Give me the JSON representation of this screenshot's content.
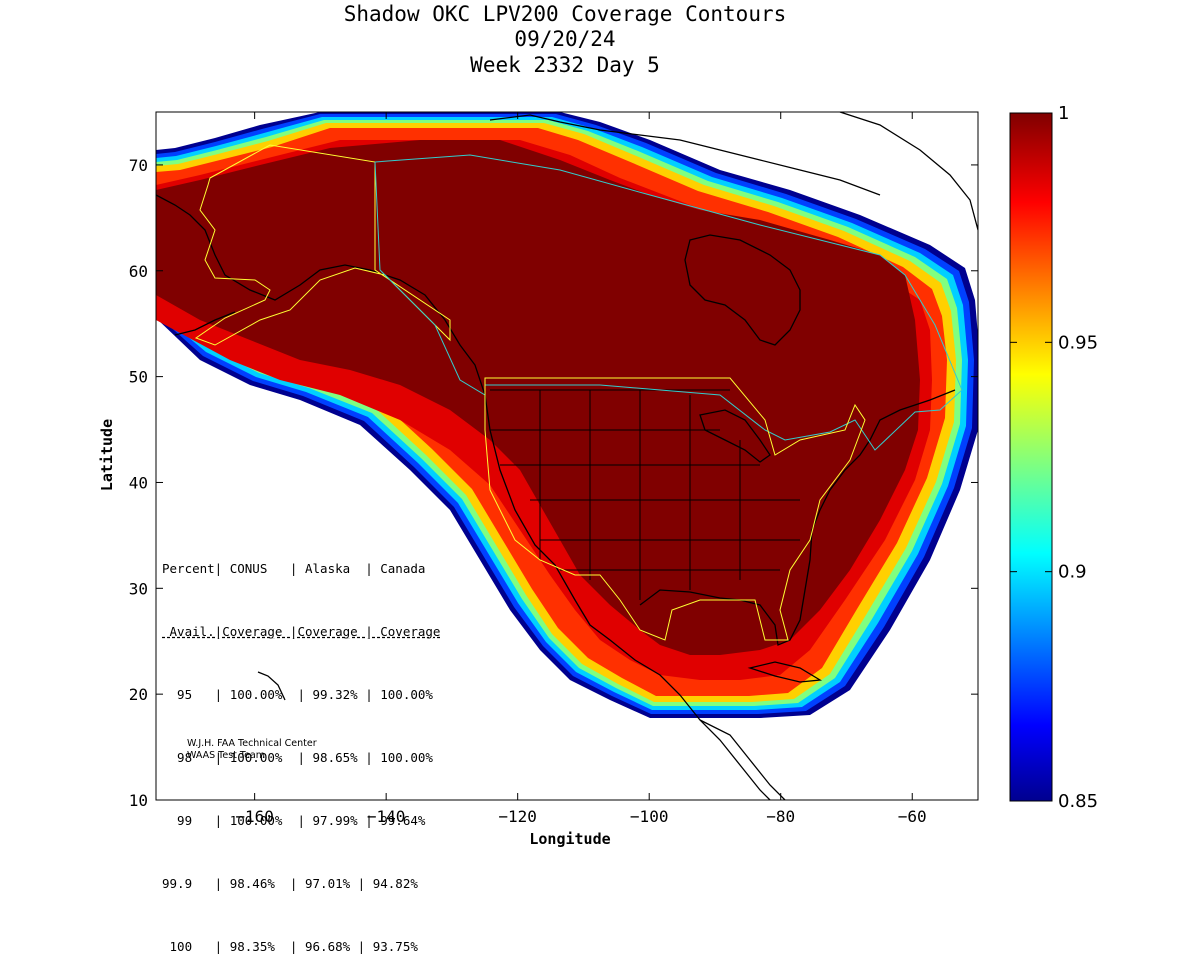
{
  "title": {
    "line1": "Shadow OKC LPV200 Coverage Contours",
    "line2": "09/20/24",
    "line3": "Week 2332 Day 5"
  },
  "axes": {
    "xlabel": "Longitude",
    "ylabel": "Latitude",
    "xticks": [
      -160,
      -140,
      -120,
      -100,
      -80,
      -60
    ],
    "yticks": [
      10,
      20,
      30,
      40,
      50,
      60,
      70
    ],
    "xlim": [
      -175,
      -50
    ],
    "ylim": [
      10,
      75
    ]
  },
  "colorbar": {
    "min": 0.85,
    "max": 1,
    "labels": [
      "1",
      "0.95",
      "0.9",
      "0.85"
    ],
    "colormap": "jet"
  },
  "stats_table": {
    "header1": "Percent| CONUS   | Alaska  | Canada",
    "header2": " Avail.|Coverage |Coverage | Coverage",
    "rows": [
      "  95   | 100.00%  | 99.32% | 100.00%",
      "  98   | 100.00%  | 98.65% | 100.00%",
      "  99   | 100.00%  | 97.99% | 99.64%",
      "99.9   | 98.46%  | 97.01% | 94.82%",
      " 100   | 98.35%  | 96.68% | 93.75%"
    ]
  },
  "credit": {
    "line1": "W.J.H. FAA Technical Center",
    "line2": "WAAS Test Team"
  },
  "colors": {
    "full_coverage": "#800000",
    "state_lines": "#000000",
    "alaska_boundary": "#ffff33",
    "canada_boundary": "#33cccc"
  }
}
